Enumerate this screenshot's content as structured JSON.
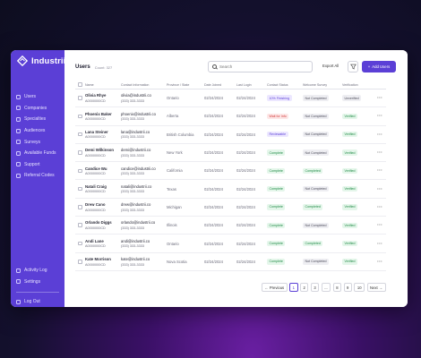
{
  "app": {
    "name": "Industrii"
  },
  "sidebar": {
    "items": [
      {
        "label": "Users",
        "icon": "users-icon"
      },
      {
        "label": "Companies",
        "icon": "companies-icon"
      },
      {
        "label": "Specialties",
        "icon": "specialties-icon"
      },
      {
        "label": "Audiences",
        "icon": "audiences-icon"
      },
      {
        "label": "Surveys",
        "icon": "surveys-icon"
      },
      {
        "label": "Available Funds",
        "icon": "funds-icon"
      },
      {
        "label": "Support",
        "icon": "support-icon"
      },
      {
        "label": "Referral Codes",
        "icon": "referral-icon"
      }
    ],
    "bottom": [
      {
        "label": "Activity Log",
        "icon": "activity-log-icon"
      },
      {
        "label": "Settings",
        "icon": "settings-icon"
      },
      {
        "label": "Log Out",
        "icon": "logout-icon"
      }
    ]
  },
  "header": {
    "title": "Users",
    "count": "Count: 327",
    "search_placeholder": "Search",
    "export_label": "Export All",
    "add_label": "Add Users"
  },
  "table": {
    "columns": [
      "Name",
      "Contact Information",
      "Province / State",
      "Date Joined",
      "Last Login",
      "Contact Status",
      "Welcome Survey",
      "Verification"
    ],
    "rows": [
      {
        "name": "Olivia Rhye",
        "id": "A0000000CD",
        "email": "olivia@industrii.co",
        "phone": "(333) 333-3333",
        "province": "Ontario",
        "joined": "02/24/2024",
        "login": "02/24/2024",
        "status": "10% Finishing",
        "status_color": "purple",
        "survey": "Not Completed",
        "verification": "Unverified"
      },
      {
        "name": "Phoenix Baker",
        "id": "A0000000CD",
        "email": "phoenix@industrii.co",
        "phone": "(333) 333-3333",
        "province": "Alberta",
        "joined": "02/24/2024",
        "login": "02/24/2024",
        "status": "Wait for Info",
        "status_color": "red",
        "survey": "Not Completed",
        "verification": "Verified"
      },
      {
        "name": "Lana Steiner",
        "id": "A0000000CD",
        "email": "lana@industrii.co",
        "phone": "(333) 333-3333",
        "province": "British Columbia",
        "joined": "02/24/2024",
        "login": "02/24/2024",
        "status": "Reviewable",
        "status_color": "purple",
        "survey": "Not Completed",
        "verification": "Verified"
      },
      {
        "name": "Demi Wilkinson",
        "id": "A0000000CD",
        "email": "demi@industrii.co",
        "phone": "(333) 333-3333",
        "province": "New York",
        "joined": "02/24/2024",
        "login": "02/24/2024",
        "status": "Complete",
        "status_color": "green",
        "survey": "Not Completed",
        "verification": "Verified"
      },
      {
        "name": "Candice Wu",
        "id": "A0000000CD",
        "email": "candice@industrii.co",
        "phone": "(333) 333-3333",
        "province": "California",
        "joined": "02/24/2024",
        "login": "02/24/2024",
        "status": "Complete",
        "status_color": "green",
        "survey": "Completed",
        "verification": "Verified"
      },
      {
        "name": "Natali Craig",
        "id": "A0000000CD",
        "email": "natali@industrii.co",
        "phone": "(333) 333-3333",
        "province": "Texas",
        "joined": "02/24/2024",
        "login": "02/24/2024",
        "status": "Complete",
        "status_color": "green",
        "survey": "Not Completed",
        "verification": "Verified"
      },
      {
        "name": "Drew Cano",
        "id": "A0000000CD",
        "email": "drew@industrii.co",
        "phone": "(333) 333-3333",
        "province": "Michigan",
        "joined": "02/24/2024",
        "login": "02/24/2024",
        "status": "Complete",
        "status_color": "green",
        "survey": "Completed",
        "verification": "Verified"
      },
      {
        "name": "Orlando Diggs",
        "id": "A0000000CD",
        "email": "orlando@industrii.co",
        "phone": "(333) 333-3333",
        "province": "Illinois",
        "joined": "02/24/2024",
        "login": "02/24/2024",
        "status": "Complete",
        "status_color": "green",
        "survey": "Not Completed",
        "verification": "Verified"
      },
      {
        "name": "Andi Lane",
        "id": "A0000000CD",
        "email": "andi@industrii.co",
        "phone": "(333) 333-3333",
        "province": "Ontario",
        "joined": "02/24/2024",
        "login": "02/24/2024",
        "status": "Complete",
        "status_color": "green",
        "survey": "Completed",
        "verification": "Verified"
      },
      {
        "name": "Kate Morrison",
        "id": "A0000000CD",
        "email": "kate@industrii.co",
        "phone": "(333) 333-3333",
        "province": "Nova Scotia",
        "joined": "02/24/2024",
        "login": "02/24/2024",
        "status": "Complete",
        "status_color": "green",
        "survey": "Not Completed",
        "verification": "Verified"
      }
    ]
  },
  "pagination": {
    "previous_label": "Previous",
    "next_label": "Next",
    "pages": [
      "1",
      "2",
      "3",
      "...",
      "8",
      "9",
      "10"
    ],
    "current": "1"
  },
  "colors": {
    "accent": "#5b3fd6",
    "success": "#1f8a45",
    "danger": "#d23b3b"
  }
}
